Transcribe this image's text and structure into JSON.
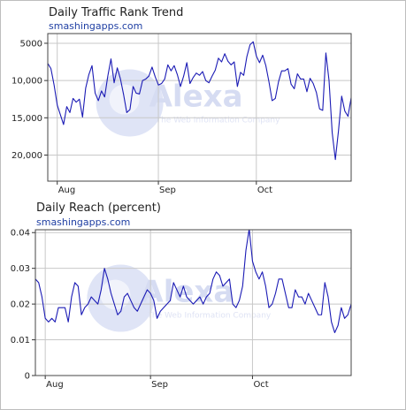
{
  "chart_data": [
    {
      "type": "line",
      "title": "Daily Traffic Rank Trend",
      "subtitle": "smashingapps.com",
      "y_reversed": true,
      "ylim": [
        3700,
        23500
      ],
      "yticks": [
        5000,
        10000,
        15000,
        20000
      ],
      "ytick_labels": [
        "5000",
        "10,000",
        "15,000",
        "20,000"
      ],
      "xlabels": [
        "Aug",
        "Sep",
        "Oct"
      ],
      "xlabel_index": [
        3,
        35,
        66
      ],
      "gridlines_x_index": [
        3,
        35,
        66
      ],
      "grid": true,
      "line_color": "#1b1bb5",
      "watermark": {
        "name": "Alexa",
        "tagline": "The Web Information Company"
      },
      "values": [
        7700,
        8400,
        10600,
        13300,
        14600,
        15900,
        13500,
        14300,
        12400,
        12900,
        12500,
        14900,
        11000,
        9200,
        8000,
        11700,
        12700,
        11400,
        12200,
        9400,
        7100,
        10300,
        8300,
        9800,
        11900,
        14300,
        13900,
        10800,
        11700,
        11800,
        10000,
        9800,
        9400,
        8200,
        9500,
        10600,
        10400,
        9800,
        7900,
        8700,
        8000,
        9200,
        10800,
        9400,
        7600,
        10400,
        9600,
        9000,
        9300,
        8800,
        10000,
        10300,
        9400,
        8600,
        7000,
        7500,
        6400,
        7400,
        7900,
        7500,
        10800,
        8900,
        9300,
        6800,
        5200,
        4800,
        6700,
        7600,
        6600,
        8000,
        10200,
        12700,
        12400,
        10200,
        8700,
        8700,
        8400,
        10500,
        11100,
        9100,
        9800,
        9800,
        11500,
        9700,
        10400,
        11600,
        13800,
        14000,
        6300,
        10000,
        17000,
        20600,
        16700,
        12100,
        14100,
        14800,
        12300
      ]
    },
    {
      "type": "line",
      "title": "Daily Reach (percent)",
      "subtitle": "smashingapps.com",
      "ylim": [
        0,
        0.0408
      ],
      "yticks": [
        0,
        0.01,
        0.02,
        0.03,
        0.04
      ],
      "ytick_labels": [
        "0",
        "0.01",
        "0.02",
        "0.03",
        "0.04"
      ],
      "xlabels": [
        "Aug",
        "Sep",
        "Oct"
      ],
      "xlabel_index": [
        3,
        35,
        66
      ],
      "gridlines_x_index": [
        3,
        35,
        66
      ],
      "grid": true,
      "line_color": "#1b1bb5",
      "watermark": {
        "name": "Alexa",
        "tagline": "The Web Information Company"
      },
      "values": [
        0.027,
        0.026,
        0.022,
        0.016,
        0.015,
        0.016,
        0.015,
        0.019,
        0.019,
        0.019,
        0.015,
        0.022,
        0.026,
        0.025,
        0.017,
        0.019,
        0.02,
        0.022,
        0.021,
        0.02,
        0.024,
        0.03,
        0.027,
        0.023,
        0.02,
        0.017,
        0.018,
        0.022,
        0.023,
        0.021,
        0.019,
        0.018,
        0.02,
        0.022,
        0.024,
        0.023,
        0.021,
        0.016,
        0.018,
        0.019,
        0.02,
        0.021,
        0.026,
        0.024,
        0.022,
        0.025,
        0.022,
        0.021,
        0.02,
        0.021,
        0.022,
        0.02,
        0.022,
        0.023,
        0.027,
        0.029,
        0.028,
        0.025,
        0.026,
        0.027,
        0.02,
        0.019,
        0.021,
        0.025,
        0.035,
        0.041,
        0.032,
        0.029,
        0.027,
        0.029,
        0.025,
        0.019,
        0.02,
        0.023,
        0.027,
        0.027,
        0.023,
        0.019,
        0.019,
        0.024,
        0.022,
        0.022,
        0.02,
        0.023,
        0.021,
        0.019,
        0.017,
        0.017,
        0.026,
        0.022,
        0.015,
        0.012,
        0.014,
        0.019,
        0.016,
        0.017,
        0.02
      ]
    }
  ]
}
